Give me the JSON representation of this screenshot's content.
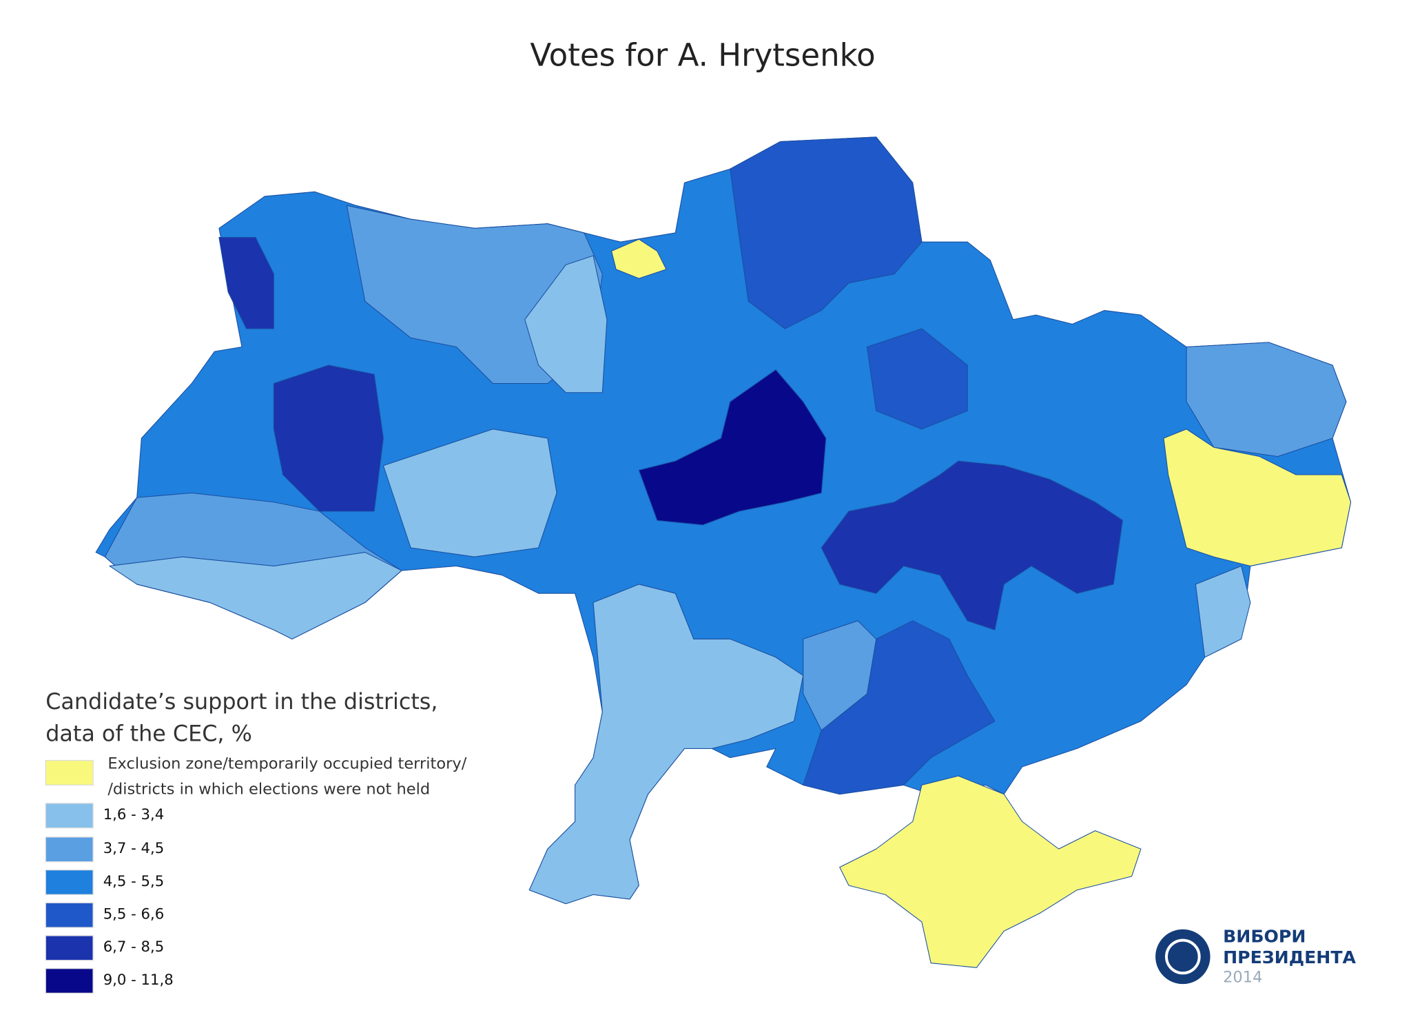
{
  "title": "Votes for A. Hrytsenko",
  "legend": {
    "title": [
      "Candidate’s support in the districts,",
      "data of the CEC, %"
    ],
    "items": [
      {
        "label": [
          "Exclusion zone/temporarily occupied territory/",
          "/districts in which elections were not held"
        ],
        "color": "#f8f87c"
      },
      {
        "label": "1,6 - 3,4",
        "color": "#87c0ea"
      },
      {
        "label": "3,7 - 4,5",
        "color": "#5b9fe3"
      },
      {
        "label": "4,5 - 5,5",
        "color": "#1f80de"
      },
      {
        "label": "5,5 - 6,6",
        "color": "#1f58c8"
      },
      {
        "label": "6,7 - 8,5",
        "color": "#1b33ad"
      },
      {
        "label": "9,0 - 11,8",
        "color": "#08098a"
      }
    ]
  },
  "logo": {
    "lines": [
      "ВИБОРИ",
      "ПРЕЗИДЕНТА"
    ],
    "year": "2014"
  }
}
